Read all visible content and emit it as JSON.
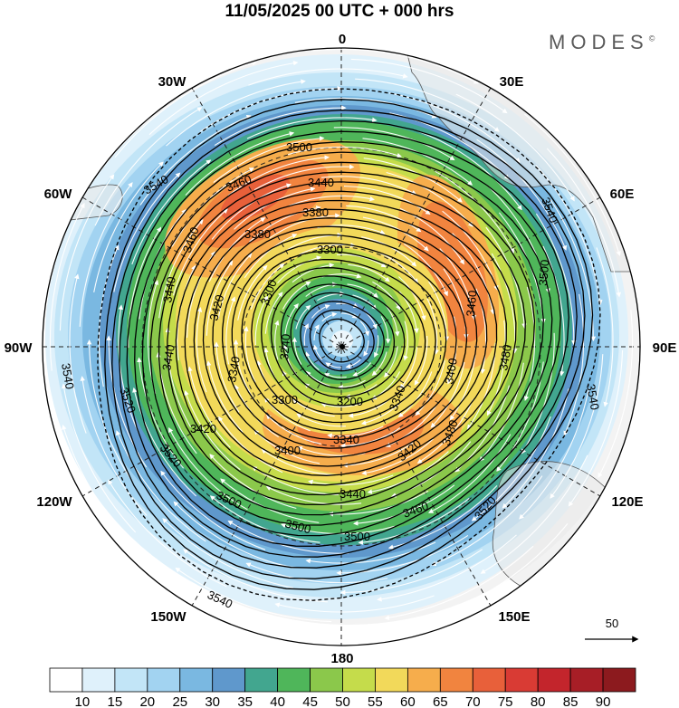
{
  "header": {
    "title": "11/05/2025  00 UTC  + 000 hrs"
  },
  "brand": {
    "name": "MODES",
    "mark": "©"
  },
  "map": {
    "projection": "south-polar stereographic",
    "longitude_labels": [
      "0",
      "30E",
      "60E",
      "90E",
      "120E",
      "150E",
      "180",
      "150W",
      "120W",
      "90W",
      "60W",
      "30W"
    ],
    "contour_labels": [
      "3200",
      "3240",
      "3300",
      "3340",
      "3380",
      "3400",
      "3420",
      "3440",
      "3460",
      "3480",
      "3500",
      "3520",
      "3540"
    ],
    "reference_vector": {
      "label": "50"
    }
  },
  "colorbar": {
    "ticks": [
      "10",
      "15",
      "20",
      "25",
      "30",
      "35",
      "40",
      "45",
      "50",
      "55",
      "60",
      "65",
      "70",
      "75",
      "80",
      "85",
      "90"
    ],
    "colors": [
      "#ffffff",
      "#dff1fb",
      "#c2e5f7",
      "#a2d3f1",
      "#7ab8e1",
      "#5f98cc",
      "#42a68f",
      "#4fb65a",
      "#8bc84b",
      "#c5dc4b",
      "#f2d95a",
      "#f6ad4c",
      "#f1843f",
      "#e8603a",
      "#d93b34",
      "#c3252c",
      "#a71e26",
      "#8c1a1e"
    ]
  }
}
